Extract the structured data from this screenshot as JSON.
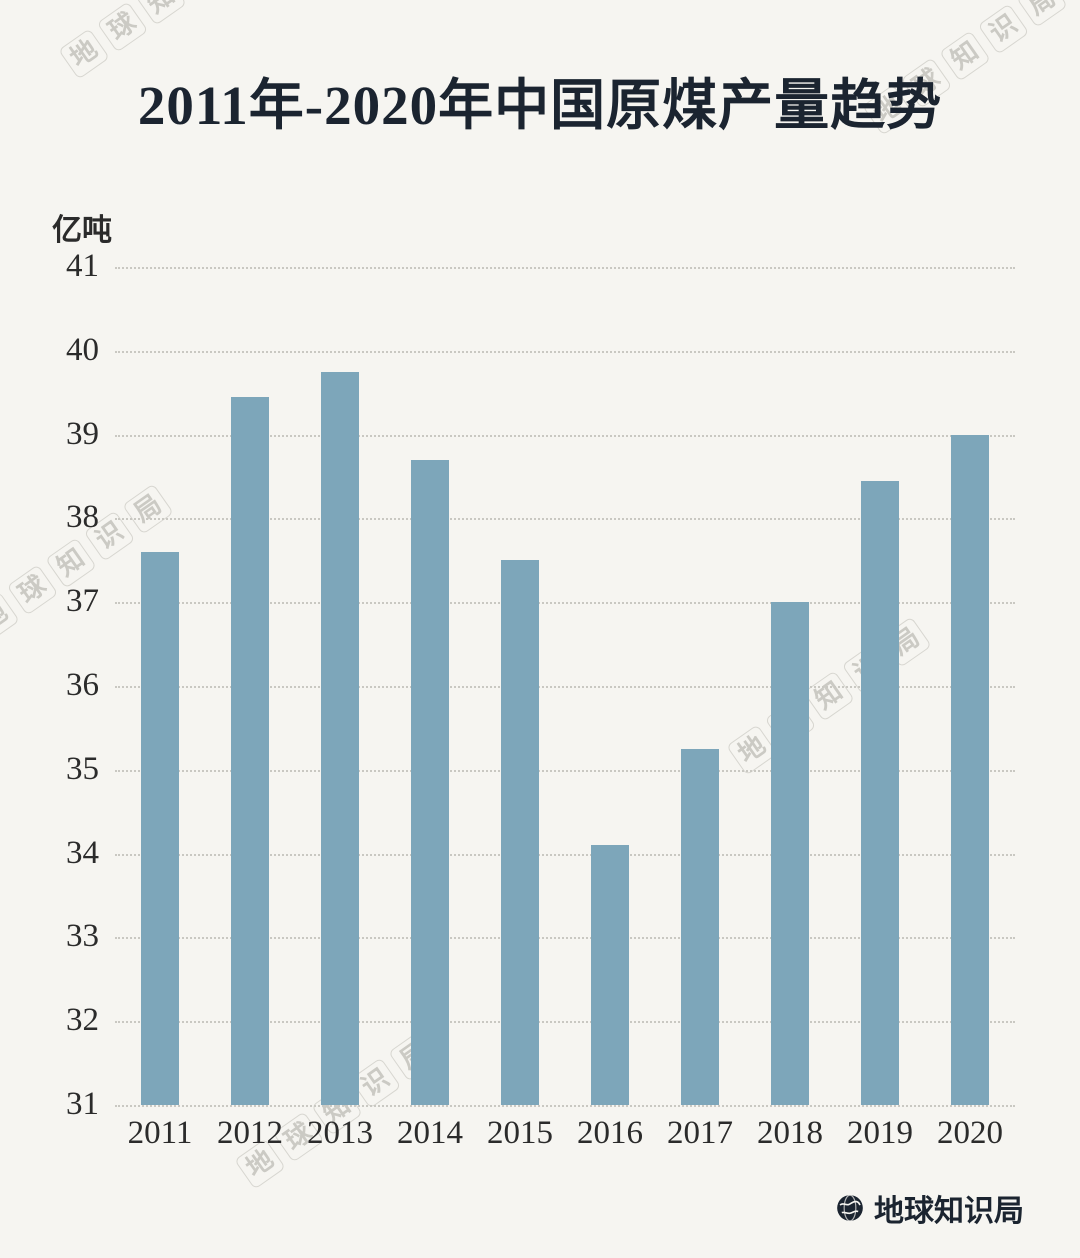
{
  "title": {
    "prefix": "2011年-2020年中国",
    "emphasis": "原煤产量趋势",
    "full": "2011年-2020年中国原煤产量趋势"
  },
  "unit_label": "亿吨",
  "watermark": {
    "text": "地球知识局"
  },
  "footer": {
    "brand": "地球知识局"
  },
  "colors": {
    "background": "#f6f5f1",
    "bar": "#7da6ba",
    "title_text": "#1b2430",
    "axis_text": "#2b2b2b",
    "gridline": "#c9c8c2",
    "watermark": "#98978f",
    "brand_text": "#1b2430"
  },
  "chart_data": {
    "type": "bar",
    "title": "2011年-2020年中国原煤产量趋势",
    "categories": [
      "2011",
      "2012",
      "2013",
      "2014",
      "2015",
      "2016",
      "2017",
      "2018",
      "2019",
      "2020"
    ],
    "values": [
      37.6,
      39.45,
      39.75,
      38.7,
      37.5,
      34.1,
      35.25,
      37.0,
      38.45,
      39.0
    ],
    "xlabel": "",
    "ylabel": "亿吨",
    "ylim": [
      31,
      41
    ],
    "yticks": [
      31,
      32,
      33,
      34,
      35,
      36,
      37,
      38,
      39,
      40,
      41
    ],
    "grid": true,
    "grid_style": "dotted-horizontal",
    "legend": false,
    "bar_color": "#7da6ba"
  }
}
